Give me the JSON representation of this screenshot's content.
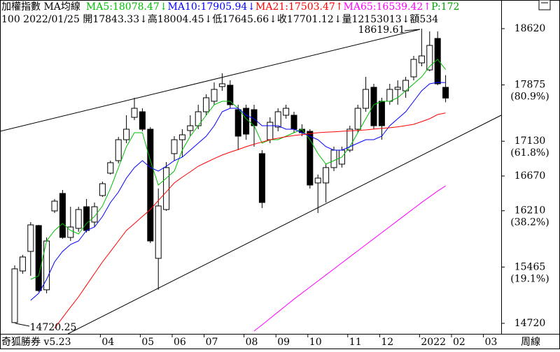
{
  "chart_data": {
    "type": "candlestick",
    "title": "加權指數 MA均線",
    "indicator": "P:172",
    "info": "100 2022/01/25 開17843.33↓高18004.45↓低17645.66↓收17701.12↓量12153013↓額534",
    "software": "奇狐勝券 v5.23",
    "period": "周線",
    "indicator_color": "#00a000",
    "up_color": "#ffffff",
    "down_color": "#000000",
    "categories": [
      null,
      null,
      null,
      null,
      null,
      null,
      null,
      null,
      null,
      null,
      null,
      "04",
      null,
      null,
      null,
      null,
      "05",
      null,
      null,
      null,
      "06",
      null,
      null,
      null,
      "07",
      null,
      null,
      null,
      null,
      "08",
      null,
      null,
      null,
      "09",
      null,
      null,
      null,
      "10",
      null,
      null,
      null,
      null,
      "11",
      null,
      null,
      null,
      "12",
      null,
      null,
      null,
      null,
      "2022",
      null,
      null,
      null,
      "02",
      null,
      null,
      null,
      "03",
      null
    ],
    "open": [
      14730,
      15413,
      15672,
      16014,
      15164,
      16208,
      16439,
      15857,
      15977,
      16263,
      16060,
      16411,
      16707,
      16873,
      17150,
      17446,
      17520,
      17289,
      15580,
      16226,
      16966,
      17150,
      17271,
      17335,
      17520,
      17659,
      17853,
      17871,
      17548,
      17566,
      17548,
      16966,
      17150,
      17317,
      17474,
      17474,
      17289,
      17261,
      16578,
      16578,
      16781,
      16827,
      17012,
      17289,
      17566,
      17844,
      17659,
      17659,
      17816,
      17797,
      17982,
      18167,
      18074,
      18490,
      17843.33,
      null,
      null,
      null,
      null,
      null,
      null
    ],
    "high": [
      15487,
      15626,
      16060,
      16023,
      15857,
      16365,
      16485,
      16263,
      16263,
      16365,
      16319,
      16596,
      16873,
      17187,
      17474,
      17705,
      17566,
      17317,
      16504,
      16855,
      17197,
      17289,
      17474,
      17613,
      17751,
      17908,
      18028,
      17936,
      17613,
      17613,
      17613,
      17012,
      17446,
      17566,
      17613,
      17520,
      17354,
      17289,
      16689,
      16827,
      17058,
      17058,
      17335,
      17613,
      17982,
      17890,
      17705,
      17890,
      17936,
      17982,
      18259,
      18619.61,
      18583,
      18583,
      18004.45,
      null,
      null,
      null,
      null,
      null,
      null
    ],
    "low": [
      14720.25,
      15376,
      15348,
      15136,
      15118,
      16180,
      15838,
      15811,
      15931,
      15921,
      15995,
      16393,
      16689,
      16836,
      17104,
      17409,
      17261,
      15783,
      15164,
      16208,
      16873,
      16920,
      17197,
      17289,
      17474,
      17613,
      17797,
      17566,
      17012,
      17150,
      17058,
      16245,
      17104,
      17261,
      17428,
      17243,
      17197,
      16504,
      16180,
      16319,
      16735,
      16781,
      16984,
      17243,
      17520,
      17289,
      17150,
      17613,
      17613,
      17705,
      17936,
      18121,
      18056,
      17871,
      17645.66,
      null,
      null,
      null,
      null,
      null,
      null
    ],
    "close": [
      15441,
      15598,
      16023,
      15154,
      15810,
      16337,
      15857,
      15995,
      16226,
      15949,
      16263,
      16568,
      16846,
      17150,
      17289,
      17566,
      17289,
      15810,
      16273,
      16781,
      17150,
      17215,
      17335,
      17520,
      17705,
      17816,
      17890,
      17613,
      17197,
      17224,
      17335,
      16319,
      17381,
      17520,
      17566,
      17289,
      17243,
      16550,
      16642,
      16781,
      17012,
      17012,
      17289,
      17566,
      17816,
      17335,
      17335,
      17816,
      17844,
      17936,
      18213,
      18259,
      18398,
      17890,
      17701.12,
      null,
      null,
      null,
      null,
      null,
      null
    ],
    "series": [
      {
        "name": "MA5:18078.47↓",
        "color": "#00c000",
        "values": [
          null,
          null,
          15302,
          15348,
          15810,
          15949,
          16041,
          15949,
          15903,
          16041,
          16134,
          16273,
          16504,
          16781,
          17058,
          17243,
          17243,
          16873,
          16550,
          16642,
          16735,
          17012,
          17197,
          17335,
          17474,
          17613,
          17659,
          17659,
          17566,
          17428,
          17335,
          17104,
          17150,
          17150,
          17197,
          17243,
          17289,
          17150,
          16966,
          16827,
          16873,
          16919,
          17058,
          17243,
          17428,
          17613,
          17659,
          17659,
          17705,
          17797,
          17890,
          17982,
          18121,
          18213,
          18078.47,
          null,
          null,
          null,
          null,
          null,
          null
        ]
      },
      {
        "name": "MA10:17905.94↓",
        "color": "#0000ff",
        "values": [
          null,
          null,
          15025,
          15117,
          15302,
          15533,
          15672,
          15764,
          15810,
          15949,
          15995,
          16134,
          16319,
          16457,
          16642,
          16781,
          16873,
          16781,
          16735,
          16799,
          16873,
          16919,
          17012,
          17104,
          17197,
          17335,
          17520,
          17566,
          17566,
          17474,
          17428,
          17335,
          17335,
          17335,
          17289,
          17289,
          17243,
          17197,
          17150,
          17058,
          17012,
          17012,
          17058,
          17104,
          17150,
          17150,
          17197,
          17335,
          17428,
          17520,
          17659,
          17797,
          17890,
          17908,
          17905.94,
          null,
          null,
          null,
          null,
          null,
          null
        ]
      },
      {
        "name": "MA21:17503.47↑",
        "color": "#ff0000",
        "values": [
          null,
          null,
          null,
          null,
          null,
          14655,
          14795,
          14935,
          15071,
          15225,
          15380,
          15533,
          15670,
          15810,
          15949,
          16040,
          16135,
          16226,
          16345,
          16460,
          16578,
          16655,
          16725,
          16799,
          16850,
          16900,
          16947,
          16985,
          17020,
          17058,
          17090,
          17120,
          17150,
          17170,
          17190,
          17206,
          17218,
          17230,
          17243,
          17249,
          17255,
          17261,
          17267,
          17273,
          17280,
          17290,
          17300,
          17308,
          17320,
          17336,
          17354,
          17390,
          17428,
          17483,
          17503.47,
          null,
          null,
          null,
          null,
          null,
          null
        ]
      },
      {
        "name": "MA65:16539.42↑",
        "color": "#ff00ff",
        "values": [
          null,
          null,
          null,
          null,
          null,
          null,
          null,
          null,
          null,
          null,
          null,
          null,
          null,
          null,
          null,
          null,
          null,
          null,
          null,
          null,
          null,
          null,
          null,
          null,
          null,
          null,
          null,
          null,
          null,
          null,
          14618,
          14700,
          14785,
          14870,
          14955,
          15040,
          15120,
          15200,
          15280,
          15360,
          15440,
          15520,
          15600,
          15680,
          15760,
          15840,
          15920,
          16000,
          16080,
          16160,
          16240,
          16320,
          16395,
          16470,
          16539.42,
          null,
          null,
          null,
          null,
          null,
          null
        ]
      }
    ],
    "ylim": [
      14581,
      18814
    ],
    "yticks": [
      18620,
      {
        "value": 17875,
        "label": "17875",
        "sublabel": "(80.9%)"
      },
      {
        "value": 17130,
        "label": "17130",
        "sublabel": "(61.8%)"
      },
      16670,
      {
        "value": 16210,
        "label": "16210",
        "sublabel": "(38.2%)"
      },
      {
        "value": 15465,
        "label": "15465",
        "sublabel": "(19.1%)"
      },
      14720
    ]
  }
}
